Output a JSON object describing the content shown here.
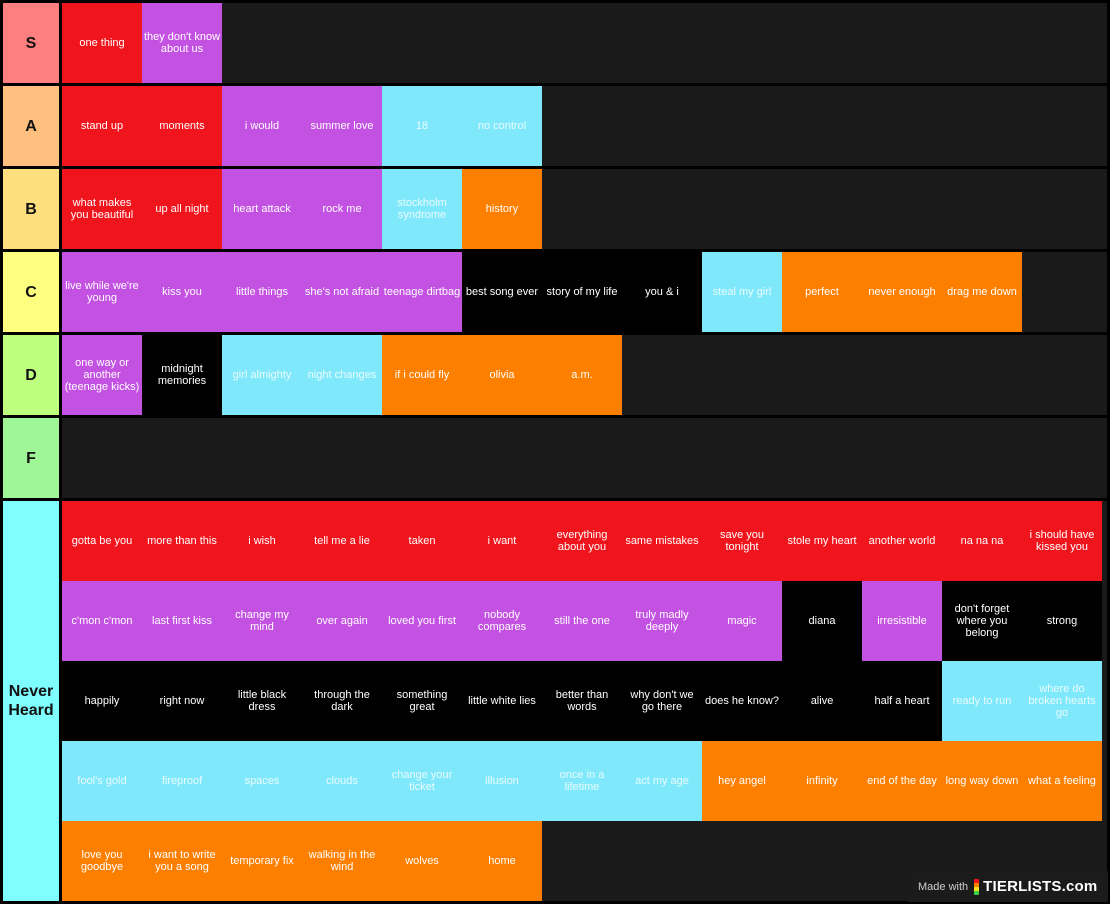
{
  "tiers": [
    {
      "label": "S",
      "color": "#fe7f7f",
      "items": [
        {
          "text": "one thing",
          "c": "red"
        },
        {
          "text": "they don't know about us",
          "c": "purple"
        }
      ]
    },
    {
      "label": "A",
      "color": "#febf7f",
      "items": [
        {
          "text": "stand up",
          "c": "red"
        },
        {
          "text": "moments",
          "c": "red"
        },
        {
          "text": "i would",
          "c": "purple"
        },
        {
          "text": "summer love",
          "c": "purple"
        },
        {
          "text": "18",
          "c": "cyan"
        },
        {
          "text": "no control",
          "c": "cyan"
        }
      ]
    },
    {
      "label": "B",
      "color": "#fedf7f",
      "items": [
        {
          "text": "what makes you beautiful",
          "c": "red"
        },
        {
          "text": "up all night",
          "c": "red"
        },
        {
          "text": "heart attack",
          "c": "purple"
        },
        {
          "text": "rock me",
          "c": "purple"
        },
        {
          "text": "stockholm syndrome",
          "c": "cyan"
        },
        {
          "text": "history",
          "c": "orange"
        }
      ]
    },
    {
      "label": "C",
      "color": "#feff7f",
      "items": [
        {
          "text": "live while we're young",
          "c": "purple"
        },
        {
          "text": "kiss you",
          "c": "purple"
        },
        {
          "text": "little things",
          "c": "purple"
        },
        {
          "text": "she's not afraid",
          "c": "purple"
        },
        {
          "text": "teenage dirtbag",
          "c": "purple"
        },
        {
          "text": "best song ever",
          "c": "black"
        },
        {
          "text": "story of my life",
          "c": "black"
        },
        {
          "text": "you & i",
          "c": "black"
        },
        {
          "text": "steal my girl",
          "c": "cyan"
        },
        {
          "text": "perfect",
          "c": "orange"
        },
        {
          "text": "never enough",
          "c": "orange"
        },
        {
          "text": "drag me down",
          "c": "orange"
        }
      ]
    },
    {
      "label": "D",
      "color": "#bfff7f",
      "items": [
        {
          "text": "one way or another (teenage kicks)",
          "c": "purple"
        },
        {
          "text": "midnight memories",
          "c": "black"
        },
        {
          "text": "girl almighty",
          "c": "cyan"
        },
        {
          "text": "night changes",
          "c": "cyan"
        },
        {
          "text": "if i could fly",
          "c": "orange"
        },
        {
          "text": "olivia",
          "c": "orange"
        },
        {
          "text": "a.m.",
          "c": "orange"
        }
      ]
    },
    {
      "label": "F",
      "color": "#9ef697",
      "items": []
    },
    {
      "label": "Never Heard",
      "color": "#7ffefe",
      "items": [
        {
          "text": "gotta be you",
          "c": "red"
        },
        {
          "text": "more than this",
          "c": "red"
        },
        {
          "text": "i wish",
          "c": "red"
        },
        {
          "text": "tell me a lie",
          "c": "red"
        },
        {
          "text": "taken",
          "c": "red"
        },
        {
          "text": "i want",
          "c": "red"
        },
        {
          "text": "everything about you",
          "c": "red"
        },
        {
          "text": "same mistakes",
          "c": "red"
        },
        {
          "text": "save you tonight",
          "c": "red"
        },
        {
          "text": "stole my heart",
          "c": "red"
        },
        {
          "text": "another world",
          "c": "red"
        },
        {
          "text": "na na na",
          "c": "red"
        },
        {
          "text": "i should have kissed you",
          "c": "red"
        },
        {
          "text": "c'mon c'mon",
          "c": "purple"
        },
        {
          "text": "last first kiss",
          "c": "purple"
        },
        {
          "text": "change my mind",
          "c": "purple"
        },
        {
          "text": "over again",
          "c": "purple"
        },
        {
          "text": "loved you first",
          "c": "purple"
        },
        {
          "text": "nobody compares",
          "c": "purple"
        },
        {
          "text": "still the one",
          "c": "purple"
        },
        {
          "text": "truly madly deeply",
          "c": "purple"
        },
        {
          "text": "magic",
          "c": "purple"
        },
        {
          "text": "diana",
          "c": "black"
        },
        {
          "text": "irresistible",
          "c": "purple"
        },
        {
          "text": "don't forget where you belong",
          "c": "black"
        },
        {
          "text": "strong",
          "c": "black"
        },
        {
          "text": "happily",
          "c": "black"
        },
        {
          "text": "right now",
          "c": "black"
        },
        {
          "text": "little black dress",
          "c": "black"
        },
        {
          "text": "through the dark",
          "c": "black"
        },
        {
          "text": "something great",
          "c": "black"
        },
        {
          "text": "little white lies",
          "c": "black"
        },
        {
          "text": "better than words",
          "c": "black"
        },
        {
          "text": "why don't we go there",
          "c": "black"
        },
        {
          "text": "does he know?",
          "c": "black"
        },
        {
          "text": "alive",
          "c": "black"
        },
        {
          "text": "half a heart",
          "c": "black"
        },
        {
          "text": "ready to run",
          "c": "cyan"
        },
        {
          "text": "where do broken hearts go",
          "c": "cyan"
        },
        {
          "text": "fool's gold",
          "c": "cyan"
        },
        {
          "text": "fireproof",
          "c": "cyan"
        },
        {
          "text": "spaces",
          "c": "cyan"
        },
        {
          "text": "clouds",
          "c": "cyan"
        },
        {
          "text": "change your ticket",
          "c": "cyan"
        },
        {
          "text": "illusion",
          "c": "cyan"
        },
        {
          "text": "once in a lifetime",
          "c": "cyan"
        },
        {
          "text": "act my age",
          "c": "cyan"
        },
        {
          "text": "hey angel",
          "c": "orange"
        },
        {
          "text": "infinity",
          "c": "orange"
        },
        {
          "text": "end of the day",
          "c": "orange"
        },
        {
          "text": "long way down",
          "c": "orange"
        },
        {
          "text": "what a feeling",
          "c": "orange"
        },
        {
          "text": "love you goodbye",
          "c": "orange"
        },
        {
          "text": "i want to write you a song",
          "c": "orange"
        },
        {
          "text": "temporary fix",
          "c": "orange"
        },
        {
          "text": "walking in the wind",
          "c": "orange"
        },
        {
          "text": "wolves",
          "c": "orange"
        },
        {
          "text": "home",
          "c": "orange"
        }
      ]
    }
  ],
  "watermark": {
    "made_with": "Made with",
    "brand": "TIERLISTS.com"
  }
}
